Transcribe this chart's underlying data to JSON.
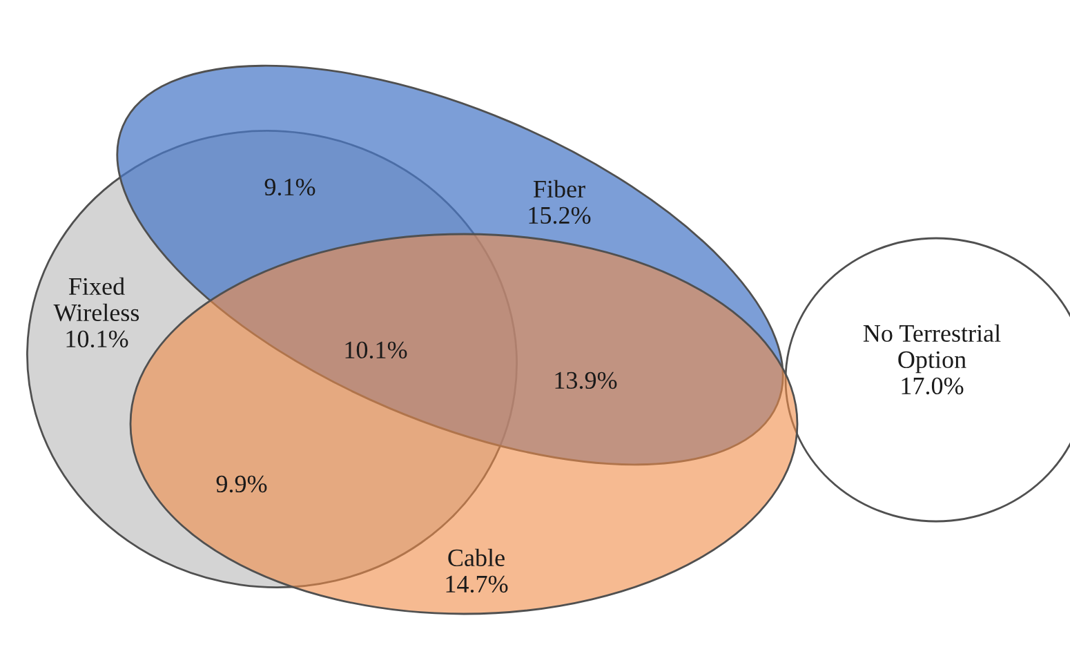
{
  "chart_data": {
    "type": "other",
    "categories": [
      "Fiber",
      "Fixed Wireless",
      "Cable",
      "No Terrestrial Option"
    ],
    "values": [
      15.2,
      10.1,
      14.7,
      17.0
    ],
    "data_labels": true,
    "value_labels": [
      "15.2%",
      "10.1%",
      "14.7%",
      "17.0%"
    ],
    "colors": [
      "#4a78c8",
      "#b8b8b8",
      "#f08c48",
      "#ffffff"
    ],
    "annotations": [
      "9.1%",
      "10.1%",
      "13.9%",
      "9.9%"
    ]
  }
}
